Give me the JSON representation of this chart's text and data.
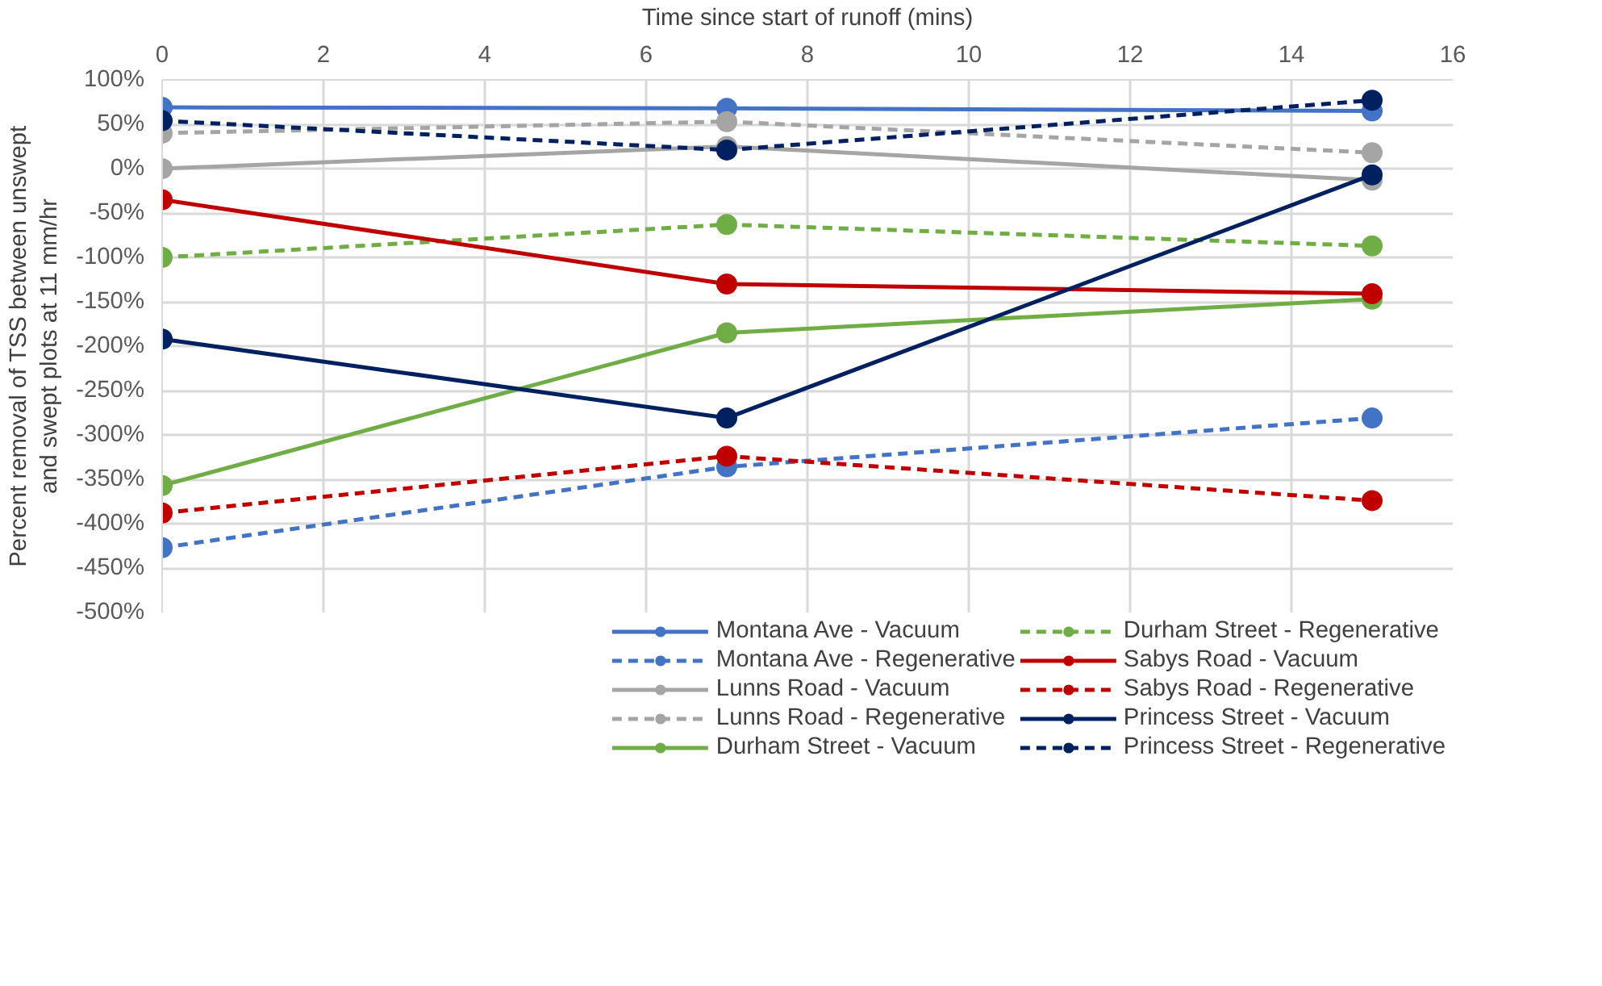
{
  "chart_data": {
    "type": "line",
    "xlabel": "Time since start of runoff (mins)",
    "ylabel": "Percent removal of TSS between unswept and swept plots at 11 mm/hr",
    "x": [
      0,
      7,
      15
    ],
    "xlim": [
      0,
      16
    ],
    "xticks": [
      0,
      2,
      4,
      6,
      8,
      10,
      12,
      14,
      16
    ],
    "ylim": [
      -500,
      100
    ],
    "yticks": [
      {
        "value": -500,
        "label": "-500%"
      },
      {
        "value": -450,
        "label": "-450%"
      },
      {
        "value": -400,
        "label": "-400%"
      },
      {
        "value": -350,
        "label": "-350%"
      },
      {
        "value": -300,
        "label": "-300%"
      },
      {
        "value": -250,
        "label": "-250%"
      },
      {
        "value": -200,
        "label": "-200%"
      },
      {
        "value": -150,
        "label": "-150%"
      },
      {
        "value": -100,
        "label": "-100%"
      },
      {
        "value": -50,
        "label": "-50%"
      },
      {
        "value": 0,
        "label": "0%"
      },
      {
        "value": 50,
        "label": "50%"
      },
      {
        "value": 100,
        "label": "100%"
      }
    ],
    "grid": true,
    "legend": "bottom",
    "marker": "circle",
    "series": [
      {
        "name": "Montana Ave - Vacuum",
        "color": "#4472c4",
        "line_style": "solid",
        "values": [
          69,
          68,
          65
        ]
      },
      {
        "name": "Montana Ave - Regenerative",
        "color": "#4472c4",
        "line_style": "dashed",
        "values": [
          -427,
          -336,
          -281
        ]
      },
      {
        "name": "Lunns Road - Vacuum",
        "color": "#a5a5a5",
        "line_style": "solid",
        "values": [
          0,
          25,
          -13
        ]
      },
      {
        "name": "Lunns Road - Regenerative",
        "color": "#a5a5a5",
        "line_style": "dashed",
        "values": [
          40,
          53,
          18
        ]
      },
      {
        "name": "Durham Street - Vacuum",
        "color": "#70ad47",
        "line_style": "solid",
        "values": [
          -357,
          -185,
          -147
        ]
      },
      {
        "name": "Durham Street - Regenerative",
        "color": "#70ad47",
        "line_style": "dashed",
        "values": [
          -100,
          -63,
          -87
        ]
      },
      {
        "name": "Sabys Road - Vacuum",
        "color": "#c00000",
        "line_style": "solid",
        "values": [
          -35,
          -130,
          -141
        ]
      },
      {
        "name": "Sabys Road - Regenerative",
        "color": "#c00000",
        "line_style": "dashed",
        "values": [
          -388,
          -324,
          -374
        ]
      },
      {
        "name": "Princess Street - Vacuum",
        "color": "#002060",
        "line_style": "solid",
        "values": [
          -192,
          -281,
          -7
        ]
      },
      {
        "name": "Princess Street - Regenerative",
        "color": "#002060",
        "line_style": "dashed",
        "values": [
          54,
          21,
          77
        ]
      }
    ]
  }
}
